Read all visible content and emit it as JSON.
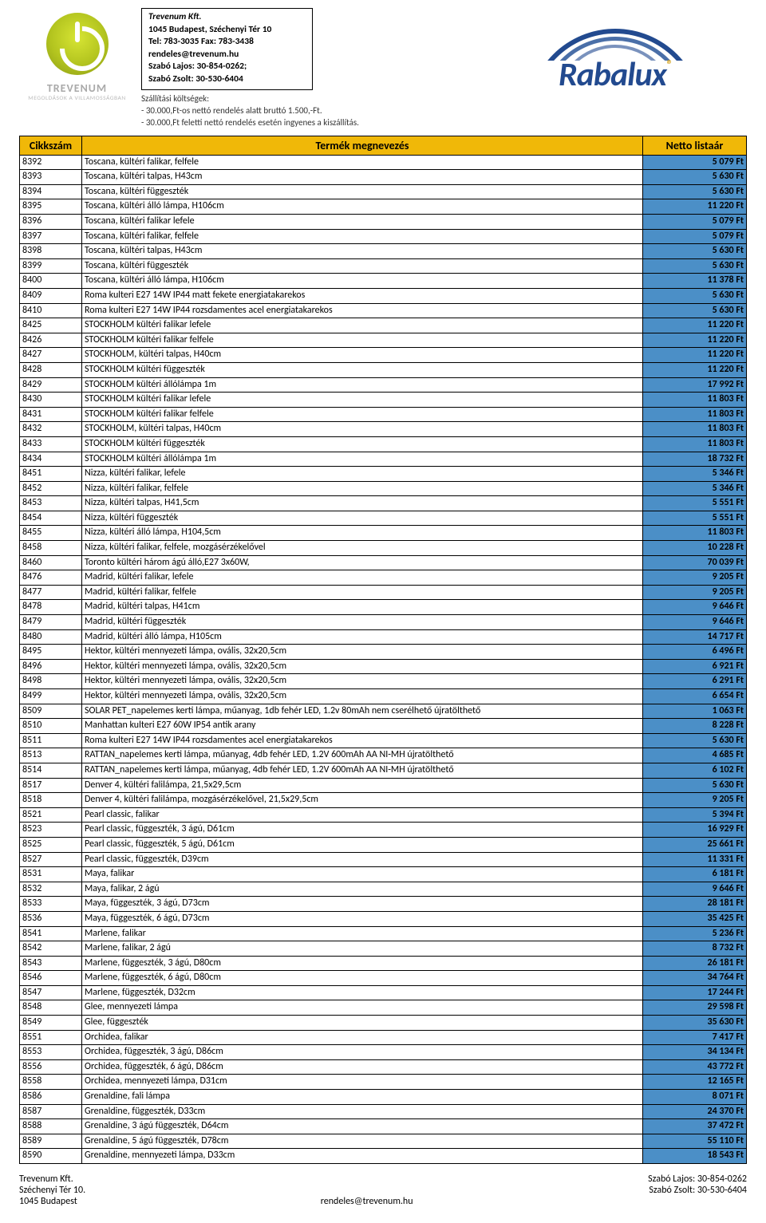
{
  "company": {
    "name": "Trevenum Kft.",
    "address": "1045 Budapest, Széchenyi  Tér 10",
    "tel": "Tel:  783-3035 Fax: 783-3438",
    "email": "rendeles@trevenum.hu",
    "contact1": "Szabó Lajos:    30-854-0262;",
    "contact2": "Szabó Zsolt:     30-530-6404"
  },
  "shipping": {
    "title": "Szállítási költségek:",
    "line1": "- 30.000,Ft-os nettó rendelés alatt  bruttó 1.500,-Ft.",
    "line2": "- 30.000,Ft feletti nettó rendelés esetén ingyenes a kiszállítás."
  },
  "logo": {
    "word": "TREVENUM",
    "sub": "MEGOLDÁSOK A VILLAMOSSÁGBAN"
  },
  "brand": {
    "word": "Rabalux"
  },
  "colors": {
    "header_bg": "#f0b808",
    "price_bg": "#4b8fc7",
    "border": "#000000",
    "brand_blue": "#224a8f",
    "brand_gold": "#d4a017"
  },
  "table": {
    "headers": {
      "code": "Cikkszám",
      "name": "Termék megnevezés",
      "price": "Netto listaár"
    },
    "col_widths": {
      "code": 78,
      "name": "auto",
      "price": 130
    },
    "currency_suffix": " Ft",
    "rows": [
      [
        "8392",
        "Toscana, kültéri falikar, felfele",
        "5 079 Ft"
      ],
      [
        "8393",
        "Toscana, kültéri talpas, H43cm",
        "5 630 Ft"
      ],
      [
        "8394",
        "Toscana, kültéri függeszték",
        "5 630 Ft"
      ],
      [
        "8395",
        "Toscana, kültéri álló lámpa, H106cm",
        "11 220 Ft"
      ],
      [
        "8396",
        "Toscana, kültéri falikar lefele",
        "5 079 Ft"
      ],
      [
        "8397",
        "Toscana, kültéri falikar, felfele",
        "5 079 Ft"
      ],
      [
        "8398",
        "Toscana, kültéri talpas, H43cm",
        "5 630 Ft"
      ],
      [
        "8399",
        "Toscana, kültéri függeszték",
        "5 630 Ft"
      ],
      [
        "8400",
        "Toscana, kültéri álló lámpa, H106cm",
        "11 378 Ft"
      ],
      [
        "8409",
        "Roma kulteri E27 14W IP44 matt fekete energiatakarekos",
        "5 630 Ft"
      ],
      [
        "8410",
        " Roma kulteri E27 14W IP44 rozsdamentes acel energiatakarekos",
        "5 630 Ft"
      ],
      [
        "8425",
        "STOCKHOLM kültéri falikar lefele",
        "11 220 Ft"
      ],
      [
        "8426",
        "STOCKHOLM kültéri falikar felfele",
        "11 220 Ft"
      ],
      [
        "8427",
        "STOCKHOLM, kültéri talpas, H40cm",
        "11 220 Ft"
      ],
      [
        "8428",
        "STOCKHOLM kültéri függeszték",
        "11 220 Ft"
      ],
      [
        "8429",
        "STOCKHOLM kültéri állólámpa 1m",
        "17 992 Ft"
      ],
      [
        "8430",
        "STOCKHOLM kültéri falikar lefele",
        "11 803 Ft"
      ],
      [
        "8431",
        "STOCKHOLM kültéri falikar felfele",
        "11 803 Ft"
      ],
      [
        "8432",
        "STOCKHOLM, kültéri talpas, H40cm",
        "11 803 Ft"
      ],
      [
        "8433",
        "STOCKHOLM kültéri függeszték",
        "11 803 Ft"
      ],
      [
        "8434",
        "STOCKHOLM kültéri állólámpa 1m",
        "18 732 Ft"
      ],
      [
        "8451",
        "Nizza, kültéri falikar, lefele",
        "5 346 Ft"
      ],
      [
        "8452",
        "Nizza, kültéri falikar, felfele",
        "5 346 Ft"
      ],
      [
        "8453",
        "Nizza, kültéri talpas, H41,5cm",
        "5 551 Ft"
      ],
      [
        "8454",
        "Nizza, kültéri függeszték",
        "5 551 Ft"
      ],
      [
        "8455",
        "Nizza, kültéri álló lámpa, H104,5cm",
        "11 803 Ft"
      ],
      [
        "8458",
        "Nizza, kültéri falikar, felfele, mozgásérzékelővel",
        "10 228 Ft"
      ],
      [
        "8460",
        "Toronto kültéri három ágú álló,E27 3x60W,",
        "70 039 Ft"
      ],
      [
        "8476",
        "Madrid, kültéri falikar, lefele",
        "9 205 Ft"
      ],
      [
        "8477",
        "Madrid, kültéri falikar, felfele",
        "9 205 Ft"
      ],
      [
        "8478",
        "Madrid, kültéri talpas, H41cm",
        "9 646 Ft"
      ],
      [
        "8479",
        "Madrid, kültéri függeszték",
        "9 646 Ft"
      ],
      [
        "8480",
        "Madrid, kültéri álló lámpa, H105cm",
        "14 717 Ft"
      ],
      [
        "8495",
        "Hektor, kültéri mennyezeti lámpa, ovális, 32x20,5cm",
        "6 496 Ft"
      ],
      [
        "8496",
        "Hektor, kültéri mennyezeti lámpa, ovális, 32x20,5cm",
        "6 921 Ft"
      ],
      [
        "8498",
        "Hektor, kültéri mennyezeti lámpa, ovális, 32x20,5cm",
        "6 291 Ft"
      ],
      [
        "8499",
        "Hektor, kültéri mennyezeti lámpa, ovális, 32x20,5cm",
        "6 654 Ft"
      ],
      [
        "8509",
        "SOLAR PET_napelemes kerti lámpa, műanyag, 1db fehér LED, 1.2v 80mAh nem cserélhető újratölthető",
        "1 063 Ft"
      ],
      [
        "8510",
        "Manhattan kulteri E27 60W IP54 antik arany",
        "8 228 Ft"
      ],
      [
        "8511",
        " Roma kulteri E27 14W IP44 rozsdamentes acel energiatakarekos",
        "5 630 Ft"
      ],
      [
        "8513",
        "RATTAN_napelemes kerti lámpa, műanyag, 4db fehér LED, 1.2V 600mAh  AA NI-MH újratölthető",
        "4 685 Ft"
      ],
      [
        "8514",
        "RATTAN_napelemes kerti lámpa, műanyag, 4db fehér LED, 1.2V 600mAh  AA NI-MH újratölthető",
        "6 102 Ft"
      ],
      [
        "8517",
        "Denver 4, kültéri falilámpa, 21,5x29,5cm",
        "5 630 Ft"
      ],
      [
        "8518",
        "Denver 4, kültéri falilámpa, mozgásérzékelővel, 21,5x29,5cm",
        "9 205 Ft"
      ],
      [
        "8521",
        "Pearl classic, falikar",
        "5 394 Ft"
      ],
      [
        "8523",
        "Pearl classic, függeszték,  3 ágú, D61cm",
        "16 929 Ft"
      ],
      [
        "8525",
        "Pearl classic, függeszték,  5 ágú, D61cm",
        "25 661 Ft"
      ],
      [
        "8527",
        "Pearl classic, függeszték, D39cm",
        "11 331 Ft"
      ],
      [
        "8531",
        "Maya, falikar",
        "6 181 Ft"
      ],
      [
        "8532",
        "Maya, falikar, 2 ágú",
        "9 646 Ft"
      ],
      [
        "8533",
        "Maya, függeszték,  3 ágú, D73cm",
        "28 181 Ft"
      ],
      [
        "8536",
        "Maya, függeszték,  6 ágú, D73cm",
        "35 425 Ft"
      ],
      [
        "8541",
        "Marlene, falikar",
        "5 236 Ft"
      ],
      [
        "8542",
        "Marlene, falikar, 2 ágú",
        "8 732 Ft"
      ],
      [
        "8543",
        "Marlene, függeszték,  3 ágú, D80cm",
        "26 181 Ft"
      ],
      [
        "8546",
        "Marlene, függeszték,  6 ágú, D80cm",
        "34 764 Ft"
      ],
      [
        "8547",
        "Marlene, függeszték, D32cm",
        "17 244 Ft"
      ],
      [
        "8548",
        "Glee, mennyezeti lámpa",
        "29 598 Ft"
      ],
      [
        "8549",
        "Glee, függeszték",
        "35 630 Ft"
      ],
      [
        "8551",
        "Orchidea, falikar",
        "7 417 Ft"
      ],
      [
        "8553",
        "Orchidea, függeszték,  3 ágú, D86cm",
        "34 134 Ft"
      ],
      [
        "8556",
        "Orchidea, függeszték,  6 ágú, D86cm",
        "43 772 Ft"
      ],
      [
        "8558",
        "Orchidea, mennyezeti lámpa, D31cm",
        "12 165 Ft"
      ],
      [
        "8586",
        "Grenaldine, fali lámpa",
        "8 071 Ft"
      ],
      [
        "8587",
        "Grenaldine, függeszték, D33cm",
        "24 370 Ft"
      ],
      [
        "8588",
        "Grenaldine, 3 ágú függeszték, D64cm",
        "37 472 Ft"
      ],
      [
        "8589",
        "Grenaldine, 5 ágú függeszték, D78cm",
        "55 110 Ft"
      ],
      [
        "8590",
        "Grenaldine, mennyezeti lámpa, D33cm",
        "18 543 Ft"
      ]
    ]
  },
  "footer": {
    "left1": "Trevenum Kft.",
    "left2": "Széchenyi Tér 10.",
    "left3": "1045 Budapest",
    "center": "rendeles@trevenum.hu",
    "right1": "Szabó Lajos: 30-854-0262",
    "right2": "Szabó Zsolt: 30-530-6404"
  }
}
